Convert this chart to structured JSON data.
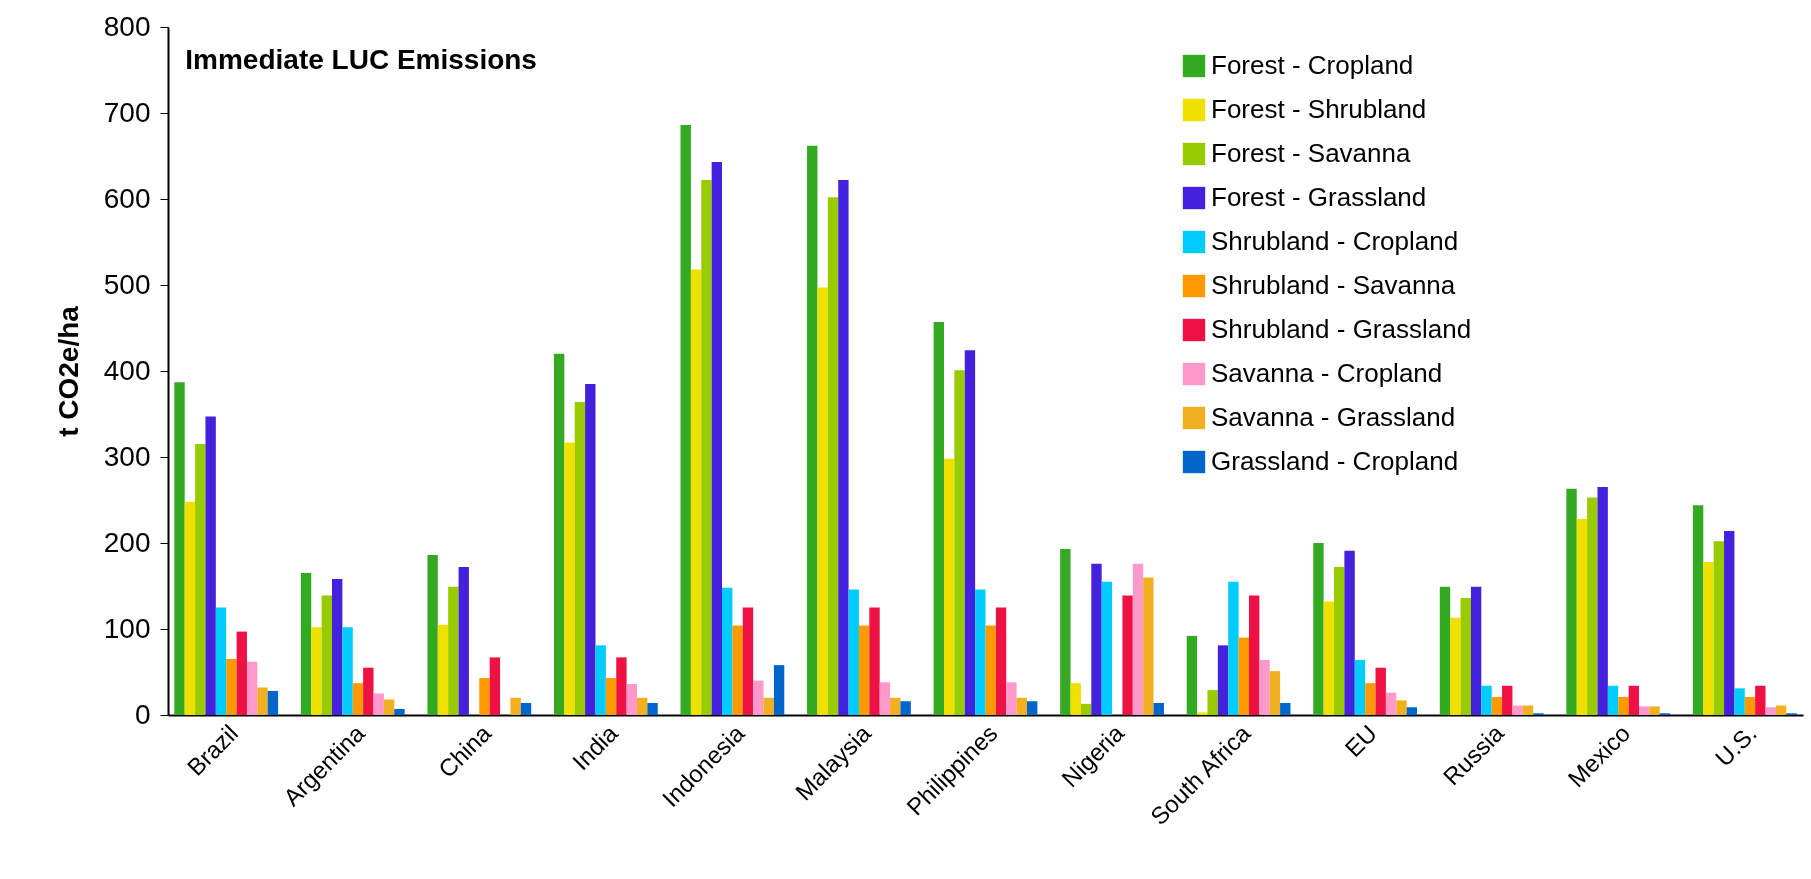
{
  "chart_data": {
    "type": "bar",
    "title": "Immediate LUC Emissions",
    "ylabel": "t CO2e/ha",
    "categories": [
      "Brazil",
      "Argentina",
      "China",
      "India",
      "Indonesia",
      "Malaysia",
      "Philippines",
      "Nigeria",
      "South Africa",
      "EU",
      "Russia",
      "Mexico",
      "U.S."
    ],
    "series": [
      {
        "name": "Forest - Cropland",
        "color": "#33aa22",
        "values": [
          387,
          165,
          186,
          420,
          686,
          662,
          457,
          193,
          92,
          200,
          149,
          263,
          244
        ]
      },
      {
        "name": "Forest - Shrubland",
        "color": "#f0e000",
        "values": [
          248,
          102,
          105,
          317,
          518,
          497,
          298,
          37,
          3,
          132,
          113,
          228,
          178
        ]
      },
      {
        "name": "Forest - Savanna",
        "color": "#99cc00",
        "values": [
          315,
          139,
          149,
          364,
          622,
          602,
          401,
          13,
          29,
          172,
          136,
          253,
          202
        ]
      },
      {
        "name": "Forest - Grassland",
        "color": "#4422dd",
        "values": [
          347,
          158,
          172,
          385,
          643,
          622,
          424,
          176,
          81,
          191,
          149,
          265,
          214
        ]
      },
      {
        "name": "Shrubland - Cropland",
        "color": "#00ccff",
        "values": [
          125,
          102,
          0,
          81,
          148,
          146,
          146,
          155,
          155,
          64,
          34,
          34,
          31
        ]
      },
      {
        "name": "Shrubland - Savanna",
        "color": "#ff9900",
        "values": [
          65,
          37,
          43,
          43,
          104,
          104,
          104,
          0,
          90,
          37,
          21,
          21,
          21
        ]
      },
      {
        "name": "Shrubland - Grassland",
        "color": "#ee1144",
        "values": [
          97,
          55,
          67,
          67,
          125,
          125,
          125,
          139,
          139,
          55,
          34,
          34,
          34
        ]
      },
      {
        "name": "Savanna - Cropland",
        "color": "#ff99cc",
        "values": [
          62,
          25,
          0,
          36,
          40,
          38,
          38,
          176,
          64,
          26,
          11,
          10,
          9
        ]
      },
      {
        "name": "Savanna - Grassland",
        "color": "#f0b020",
        "values": [
          32,
          18,
          20,
          20,
          20,
          20,
          20,
          160,
          51,
          17,
          11,
          10,
          11
        ]
      },
      {
        "name": "Grassland - Cropland",
        "color": "#0066cc",
        "values": [
          28,
          7,
          14,
          14,
          58,
          16,
          16,
          14,
          14,
          9,
          2,
          2,
          2
        ]
      }
    ],
    "ylim": [
      0,
      800
    ],
    "yticks": [
      0,
      100,
      200,
      300,
      400,
      500,
      600,
      700,
      800
    ],
    "legend": "top right"
  }
}
